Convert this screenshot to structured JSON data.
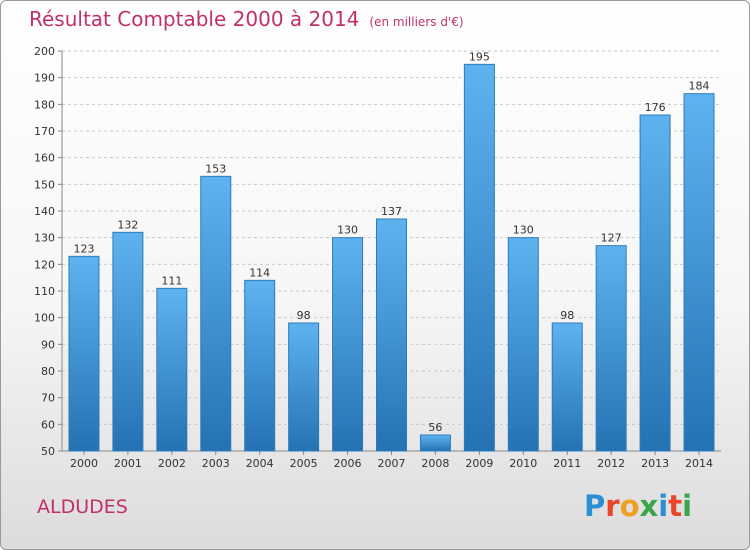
{
  "header": {
    "title": "Résultat Comptable 2000 à 2014",
    "subtitle": "(en milliers d'€)"
  },
  "footer": {
    "commune": "ALDUDES",
    "brand_letters": [
      "P",
      "r",
      "o",
      "x",
      "i",
      "t",
      "i"
    ],
    "brand_colors": [
      "#2b8fd6",
      "#e8452b",
      "#f0a020",
      "#3aa64a",
      "#2b8fd6",
      "#e8452b",
      "#3aa64a"
    ]
  },
  "colors": {
    "bar_top": "#5eb3ef",
    "bar_bottom": "#2572b3",
    "bar_stroke": "#2a7cc0",
    "title": "#c0306a"
  },
  "chart_data": {
    "type": "bar",
    "title": "Résultat Comptable 2000 à 2014",
    "subtitle": "(en milliers d'€)",
    "categories": [
      "2000",
      "2001",
      "2002",
      "2003",
      "2004",
      "2005",
      "2006",
      "2007",
      "2008",
      "2009",
      "2010",
      "2011",
      "2012",
      "2013",
      "2014"
    ],
    "values": [
      123,
      132,
      111,
      153,
      114,
      98,
      130,
      137,
      56,
      195,
      130,
      98,
      127,
      176,
      184
    ],
    "ylim": [
      50,
      200
    ],
    "yticks": [
      50,
      60,
      70,
      80,
      90,
      100,
      110,
      120,
      130,
      140,
      150,
      160,
      170,
      180,
      190,
      200
    ],
    "grid": "horizontal dashed",
    "legend": "none"
  }
}
